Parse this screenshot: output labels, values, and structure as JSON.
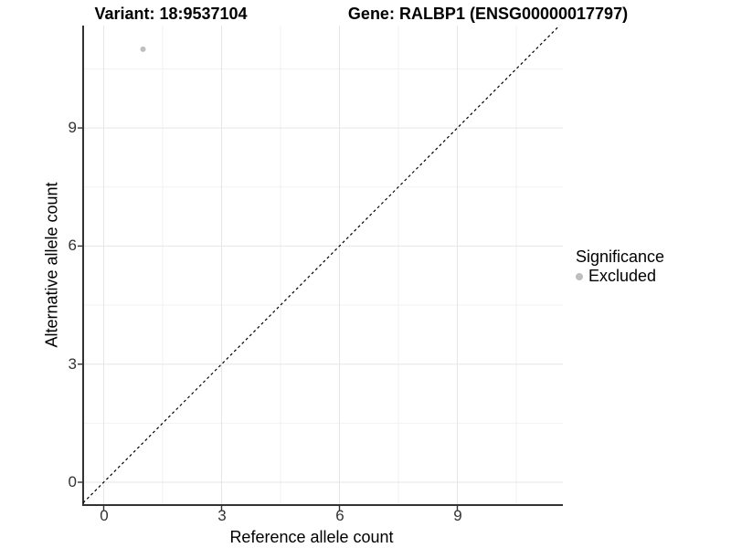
{
  "titles": {
    "variant": "Variant: 18:9537104",
    "gene": "Gene: RALBP1 (ENSG00000017797)"
  },
  "axis": {
    "xlabel": "Reference allele count",
    "ylabel": "Alternative allele count"
  },
  "legend": {
    "title": "Significance",
    "items": [
      {
        "label": "Excluded",
        "color": "#bebebe"
      }
    ]
  },
  "colors": {
    "point": "#bebebe",
    "grid_major": "#e6e6e6",
    "grid_minor": "#f2f2f2",
    "axis_line": "#333333",
    "diagonal": "#000000",
    "tick_label": "#333333"
  },
  "chart_data": {
    "type": "scatter",
    "title": "Variant: 18:9537104  /  Gene: RALBP1 (ENSG00000017797)",
    "xlabel": "Reference allele count",
    "ylabel": "Alternative allele count",
    "x_ticks": [
      0,
      3,
      6,
      9
    ],
    "y_ticks": [
      0,
      3,
      6,
      9
    ],
    "x_minor_ticks": [
      1.5,
      4.5,
      7.5,
      10.5
    ],
    "y_minor_ticks": [
      1.5,
      4.5,
      7.5,
      10.5
    ],
    "xlim": [
      -0.52,
      11.7
    ],
    "ylim": [
      -0.58,
      11.6
    ],
    "grid": true,
    "legend_position": "right",
    "series": [
      {
        "name": "Excluded",
        "color": "#bebebe",
        "points": [
          {
            "x": 1,
            "y": 11
          }
        ]
      }
    ],
    "reference_line": {
      "type": "identity y=x",
      "style": "dashed",
      "color": "#000000"
    }
  }
}
